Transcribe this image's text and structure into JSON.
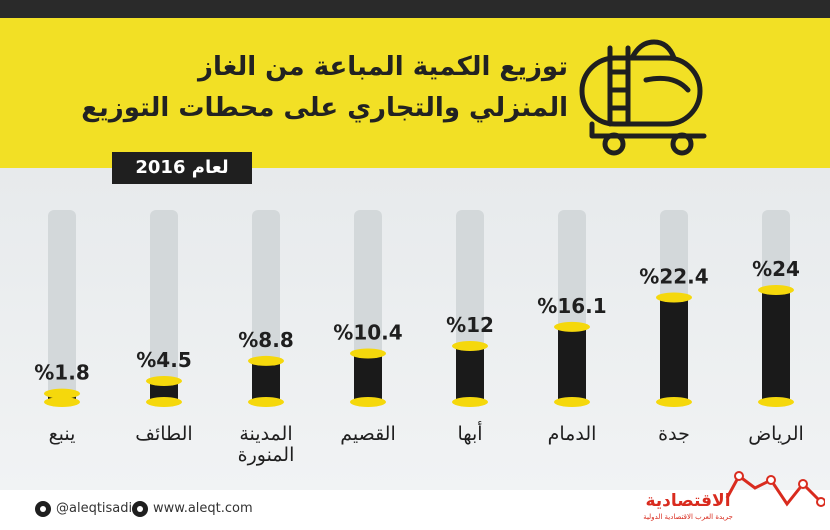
{
  "header": {
    "title_line1": "توزيع الكمية المباعة من الغاز",
    "title_line2": "المنزلي والتجاري على محطات التوزيع",
    "year_label": "لعام 2016",
    "icon": "gas-tanker-truck-icon"
  },
  "chart_data": {
    "type": "bar",
    "title": "توزيع الكمية المباعة من الغاز المنزلي والتجاري على محطات التوزيع",
    "subtitle": "لعام 2016",
    "unit": "%",
    "categories": [
      "الرياض",
      "جدة",
      "الدمام",
      "أبها",
      "القصيم",
      "المدينة المنورة",
      "الطائف",
      "ينبع"
    ],
    "values": [
      24,
      22.4,
      16.1,
      12,
      10.4,
      8.8,
      4.5,
      1.8
    ],
    "value_labels": [
      "%24",
      "%22.4",
      "%16.1",
      "%12",
      "%10.4",
      "%8.8",
      "%4.5",
      "%1.8"
    ],
    "ylim": [
      0,
      35
    ],
    "order": "right-to-left",
    "grid": false,
    "legend": "none",
    "colors": {
      "bar": "#1a1a1a",
      "cap": "#f5d80c",
      "track": "#d3d8da"
    }
  },
  "footer": {
    "twitter": "@aleqtisadiah",
    "website": "www.aleqt.com",
    "brand_name": "الاقتصادية",
    "brand_sub": "جريدة العرب الاقتصادية الدولية",
    "twitter_icon": "twitter-icon",
    "web_icon": "globe-icon"
  }
}
